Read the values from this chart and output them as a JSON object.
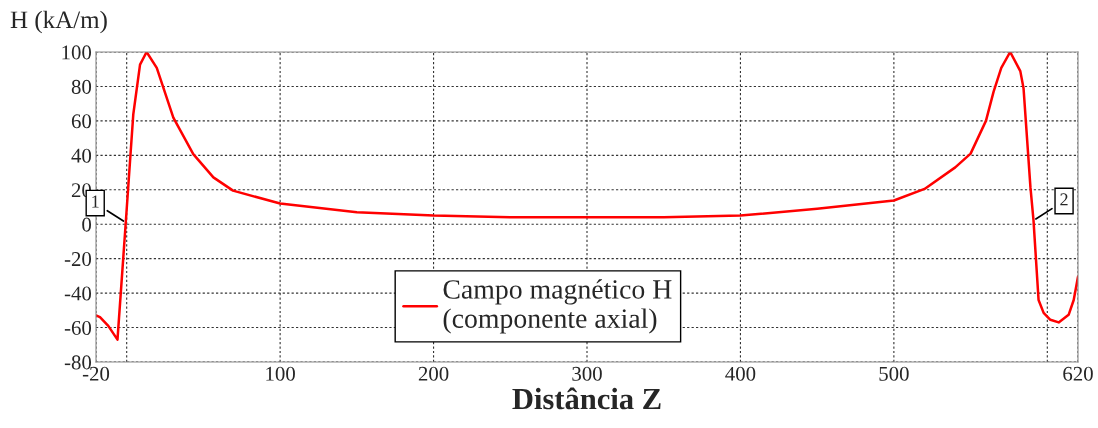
{
  "chart_data": {
    "type": "line",
    "xlabel": "Distância Z",
    "ylabel": "H (kA/m)",
    "x": [
      -20,
      -17.4,
      -12,
      -6,
      -0.6,
      4.3,
      8.7,
      13,
      19.6,
      30.4,
      43.4,
      56.5,
      69.3,
      100,
      150,
      200,
      250,
      300,
      350,
      400,
      450,
      500,
      520,
      540,
      550,
      560,
      565,
      570,
      575.8,
      582.4,
      584.5,
      589,
      591,
      594.3,
      597.6,
      602,
      607.4,
      613.9,
      617.2,
      620
    ],
    "series": [
      {
        "name": "Campo magnético H\n(componente axial)",
        "color": "#ff0000",
        "values": [
          -53,
          -54,
          -59,
          -67,
          1,
          63.8,
          92.7,
          100,
          90.8,
          61.9,
          40.7,
          27.2,
          19.5,
          12,
          7,
          5,
          4,
          4,
          4,
          5,
          9,
          13.8,
          20.5,
          33,
          41,
          60,
          77,
          90.8,
          100,
          88.9,
          79,
          21.5,
          2.2,
          -44,
          -51.5,
          -55.5,
          -57,
          -52.6,
          -44,
          -30.5
        ]
      }
    ],
    "xlim": [
      -20,
      620
    ],
    "ylim": [
      -80,
      100
    ],
    "xticks": [
      -20,
      {
        "value": 0,
        "label": null
      },
      100,
      200,
      300,
      400,
      500,
      {
        "value": 600,
        "label": null
      },
      620
    ],
    "yticks": [
      -80,
      -60,
      -40,
      -20,
      0,
      20,
      40,
      60,
      80,
      100
    ],
    "grid": true,
    "legend": "bottom",
    "line_style": "solid",
    "marker": "none",
    "annotations": [
      {
        "text": "1",
        "x": -0.6,
        "y": 1
      },
      {
        "text": "2",
        "x": 591,
        "y": 2.2
      }
    ]
  }
}
